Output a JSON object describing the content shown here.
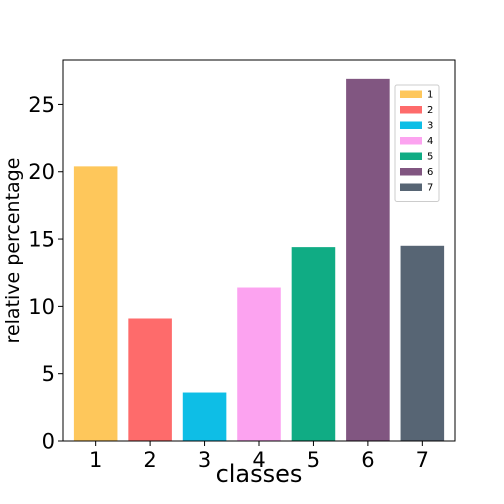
{
  "chart_data": {
    "type": "bar",
    "title": "",
    "xlabel": "classes",
    "ylabel": "relative percentage",
    "categories": [
      "1",
      "2",
      "3",
      "4",
      "5",
      "6",
      "7"
    ],
    "values": [
      20.4,
      9.1,
      3.6,
      11.4,
      14.4,
      26.9,
      14.5
    ],
    "colors": [
      "#fec75b",
      "#fe6b6b",
      "#0ebee6",
      "#fca3f0",
      "#10ac84",
      "#815681",
      "#576574"
    ],
    "ylim": [
      0,
      28.3
    ],
    "yticks": [
      0,
      5,
      10,
      15,
      20,
      25
    ],
    "grid": false,
    "legend": {
      "placement": "top-right",
      "entries": [
        "1",
        "2",
        "3",
        "4",
        "5",
        "6",
        "7"
      ]
    }
  }
}
